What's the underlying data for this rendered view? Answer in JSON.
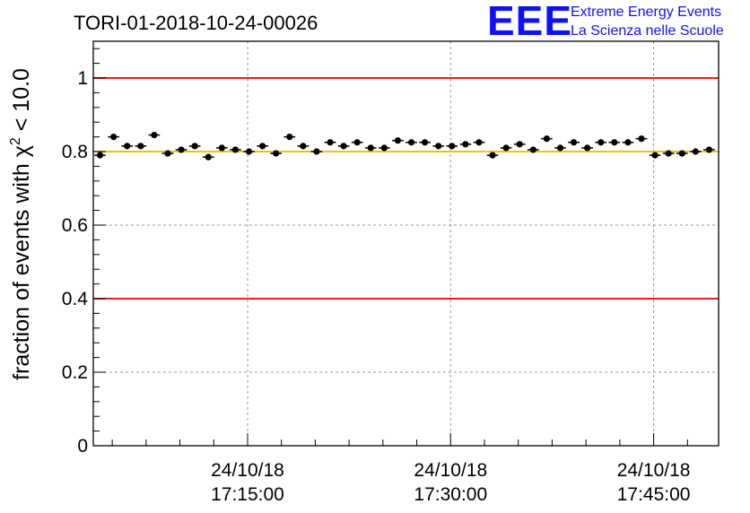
{
  "logo": {
    "mark": "EEE",
    "line1": "Extreme Energy Events",
    "line2": "La Scienza nelle Scuole",
    "color": "#1010ff"
  },
  "chart_data": {
    "type": "scatter",
    "title": "TORI-01-2018-10-24-00026",
    "xlabel": "",
    "ylabel_prefix": "fraction of events with ",
    "ylabel_symbol": "χ",
    "ylabel_sup": "2",
    "ylabel_suffix": " < 10.0",
    "x_unit": "minutes after 17:00:00 on 24/10/18",
    "xlim": [
      3.6,
      49.8
    ],
    "ylim": [
      0,
      1.1
    ],
    "x_ticks": [
      {
        "value": 15,
        "date": "24/10/18",
        "time": "17:15:00"
      },
      {
        "value": 30,
        "date": "24/10/18",
        "time": "17:30:00"
      },
      {
        "value": 45,
        "date": "24/10/18",
        "time": "17:45:00"
      }
    ],
    "y_ticks": [
      {
        "value": 0,
        "label": "0"
      },
      {
        "value": 0.2,
        "label": "0.2"
      },
      {
        "value": 0.4,
        "label": "0.4"
      },
      {
        "value": 0.6,
        "label": "0.6"
      },
      {
        "value": 0.8,
        "label": "0.8"
      },
      {
        "value": 1.0,
        "label": "1"
      }
    ],
    "grid": true,
    "reference_lines": [
      {
        "y": 1.0,
        "color": "#e8201c"
      },
      {
        "y": 0.4,
        "color": "#e8201c"
      },
      {
        "y": 0.8,
        "color": "#f5c400"
      }
    ],
    "marker_color": "#000000",
    "x_half_width": 0.42,
    "y_error": 0.008,
    "points": [
      {
        "x": 4.1,
        "y": 0.79
      },
      {
        "x": 5.1,
        "y": 0.84
      },
      {
        "x": 6.1,
        "y": 0.815
      },
      {
        "x": 7.1,
        "y": 0.815
      },
      {
        "x": 8.1,
        "y": 0.845
      },
      {
        "x": 9.1,
        "y": 0.795
      },
      {
        "x": 10.1,
        "y": 0.805
      },
      {
        "x": 11.1,
        "y": 0.815
      },
      {
        "x": 12.1,
        "y": 0.785
      },
      {
        "x": 13.1,
        "y": 0.81
      },
      {
        "x": 14.1,
        "y": 0.805
      },
      {
        "x": 15.1,
        "y": 0.8
      },
      {
        "x": 16.1,
        "y": 0.815
      },
      {
        "x": 17.1,
        "y": 0.795
      },
      {
        "x": 18.1,
        "y": 0.84
      },
      {
        "x": 19.1,
        "y": 0.815
      },
      {
        "x": 20.1,
        "y": 0.8
      },
      {
        "x": 21.1,
        "y": 0.825
      },
      {
        "x": 22.1,
        "y": 0.815
      },
      {
        "x": 23.1,
        "y": 0.825
      },
      {
        "x": 24.1,
        "y": 0.81
      },
      {
        "x": 25.1,
        "y": 0.81
      },
      {
        "x": 26.1,
        "y": 0.83
      },
      {
        "x": 27.1,
        "y": 0.825
      },
      {
        "x": 28.1,
        "y": 0.825
      },
      {
        "x": 29.1,
        "y": 0.815
      },
      {
        "x": 30.1,
        "y": 0.815
      },
      {
        "x": 31.1,
        "y": 0.82
      },
      {
        "x": 32.1,
        "y": 0.825
      },
      {
        "x": 33.1,
        "y": 0.79
      },
      {
        "x": 34.1,
        "y": 0.81
      },
      {
        "x": 35.1,
        "y": 0.82
      },
      {
        "x": 36.1,
        "y": 0.805
      },
      {
        "x": 37.1,
        "y": 0.835
      },
      {
        "x": 38.1,
        "y": 0.81
      },
      {
        "x": 39.1,
        "y": 0.825
      },
      {
        "x": 40.1,
        "y": 0.81
      },
      {
        "x": 41.1,
        "y": 0.825
      },
      {
        "x": 42.1,
        "y": 0.825
      },
      {
        "x": 43.1,
        "y": 0.825
      },
      {
        "x": 44.1,
        "y": 0.835
      },
      {
        "x": 45.1,
        "y": 0.79
      },
      {
        "x": 46.1,
        "y": 0.795
      },
      {
        "x": 47.1,
        "y": 0.795
      },
      {
        "x": 48.1,
        "y": 0.8
      },
      {
        "x": 49.1,
        "y": 0.805
      }
    ]
  }
}
